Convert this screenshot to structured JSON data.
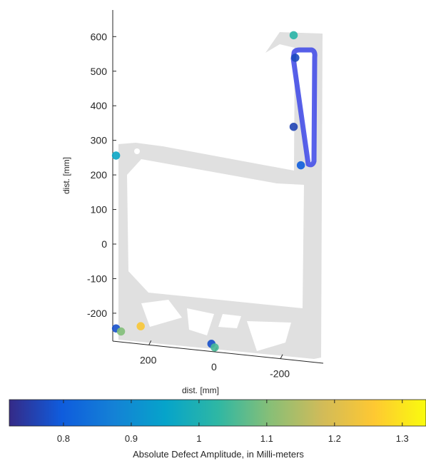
{
  "chart_data": {
    "type": "scatter",
    "view": "3d-perspective",
    "ylabel": "dist. [mm]",
    "xlabel": "dist. [mm]",
    "y_ticks": [
      600,
      500,
      400,
      300,
      200,
      100,
      0,
      -100,
      -200
    ],
    "x_ticks": [
      200,
      0,
      -200
    ],
    "ylim": [
      -280,
      620
    ],
    "xlim": [
      -330,
      310
    ],
    "colorbar": {
      "label": "Absolute Defect Amplitude, in Milli-meters",
      "ticks": [
        0.8,
        0.9,
        1,
        1.1,
        1.2,
        1.3
      ],
      "tick_labels": [
        "0.8",
        "0.9",
        "1",
        "1.1",
        "1.2",
        "1.3"
      ],
      "range": [
        0.72,
        1.335
      ],
      "colormap": "parula",
      "colors": [
        "#352a87",
        "#0f5cdd",
        "#1481d6",
        "#06a4ca",
        "#2eb7a4",
        "#87bf77",
        "#d1bb59",
        "#fec832",
        "#f9fb0e"
      ]
    },
    "defects": [
      {
        "x": -240,
        "y": 615,
        "value": 1.02
      },
      {
        "x": -245,
        "y": 550,
        "value": 0.77
      },
      {
        "x": -240,
        "y": 350,
        "value": 0.76
      },
      {
        "x": -262,
        "y": 240,
        "value": 0.8
      },
      {
        "x": 300,
        "y": 240,
        "value": 0.96
      },
      {
        "x": 300,
        "y": -260,
        "value": 0.78
      },
      {
        "x": 285,
        "y": -268,
        "value": 1.1
      },
      {
        "x": 225,
        "y": -250,
        "value": 1.25
      },
      {
        "x": 10,
        "y": -290,
        "value": 0.78
      },
      {
        "x": 0,
        "y": -300,
        "value": 1.05
      }
    ]
  }
}
